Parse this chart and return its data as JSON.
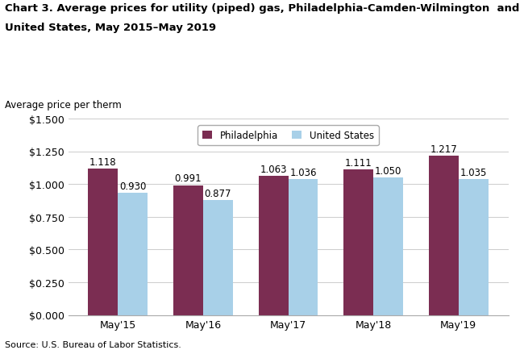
{
  "title_line1": "Chart 3. Average prices for utility (piped) gas, Philadelphia-Camden-Wilmington  and",
  "title_line2": "United States, May 2015–May 2019",
  "ylabel": "Average price per therm",
  "source": "Source: U.S. Bureau of Labor Statistics.",
  "categories": [
    "May'15",
    "May'16",
    "May'17",
    "May'18",
    "May'19"
  ],
  "philadelphia": [
    1.118,
    0.991,
    1.063,
    1.111,
    1.217
  ],
  "us": [
    0.93,
    0.877,
    1.036,
    1.05,
    1.035
  ],
  "philly_color": "#7B2D52",
  "us_color": "#A8D0E8",
  "bar_width": 0.35,
  "ylim": [
    0,
    1.5
  ],
  "yticks": [
    0.0,
    0.25,
    0.5,
    0.75,
    1.0,
    1.25,
    1.5
  ],
  "ytick_labels": [
    "$0.000",
    "$0.250",
    "$0.500",
    "$0.750",
    "$1.000",
    "$1.250",
    "$1.500"
  ],
  "legend_labels": [
    "Philadelphia",
    "United States"
  ],
  "title_fontsize": 9.5,
  "label_fontsize": 8.5,
  "tick_fontsize": 9,
  "annotation_fontsize": 8.5,
  "source_fontsize": 8,
  "background_color": "#ffffff",
  "grid_color": "#cccccc"
}
